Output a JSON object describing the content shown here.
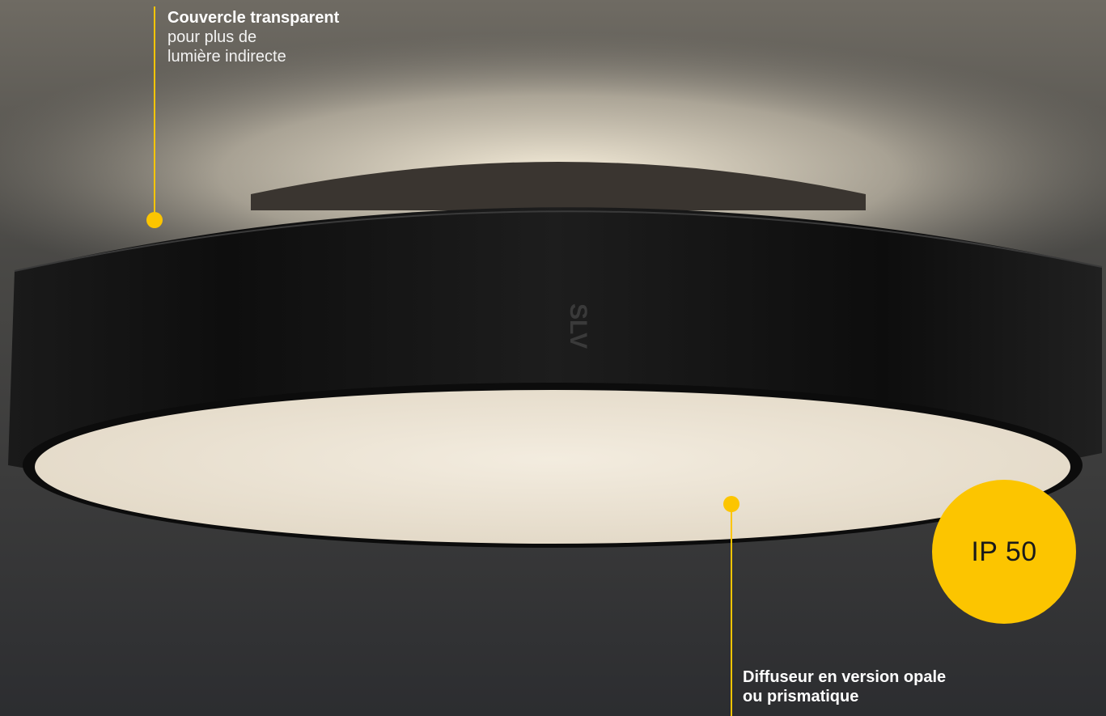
{
  "callouts": {
    "top": {
      "title": "Couvercle transparent",
      "line1": "pour plus de",
      "line2": "lumière indirecte"
    },
    "bottom": {
      "line1": "Diffuseur en version opale",
      "line2": "ou prismatique"
    }
  },
  "badge": {
    "label": "IP 50"
  },
  "brand": {
    "logo": "SLV"
  },
  "colors": {
    "accent": "#fcc500",
    "background": "#2f3033",
    "lamp_body": "#151515",
    "diffuser": "#eee5d6"
  }
}
